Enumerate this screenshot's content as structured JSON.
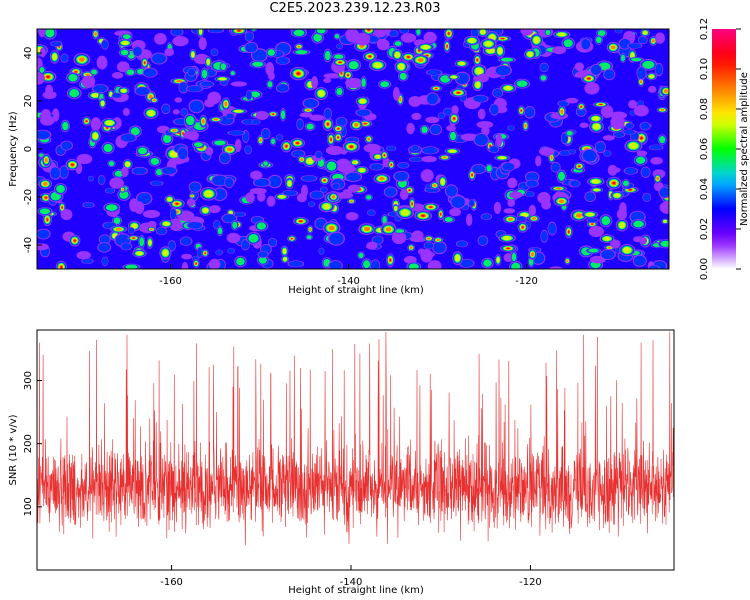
{
  "title": "C2E5.2023.239.12.23.R03",
  "chart_data": [
    {
      "type": "heatmap",
      "xlabel": "Height of straight line (km)",
      "ylabel": "Frequency (Hz)",
      "xlim": [
        -175,
        -104
      ],
      "ylim": [
        -50,
        50
      ],
      "xticks": [
        -160,
        -140,
        -120
      ],
      "xtick_labels": [
        "-160",
        "-140",
        "-120"
      ],
      "yticks": [
        -40,
        -20,
        0,
        20,
        40
      ],
      "ytick_labels": [
        "-40",
        "-20",
        "0",
        "20",
        "40"
      ],
      "colorbar": {
        "label": "Normalized spectral amplitude",
        "range": [
          0,
          0.12
        ],
        "ticks": [
          0,
          0.02,
          0.04,
          0.06,
          0.08,
          0.1,
          0.12
        ],
        "tick_labels": [
          "0.00",
          "0.02",
          "0.04",
          "0.06",
          "0.08",
          "0.10",
          "0.12"
        ],
        "colors": [
          "#ffffff",
          "#8000ff",
          "#0000ff",
          "#00ccff",
          "#00ff00",
          "#ffff00",
          "#ff8000",
          "#ff0000",
          "#ff0080"
        ]
      }
    },
    {
      "type": "line",
      "xlabel": "Height of straight line (km)",
      "ylabel": "SNR (10 * v/v)",
      "xlim": [
        -175,
        -104
      ],
      "ylim": [
        0,
        380
      ],
      "xticks": [
        -160,
        -140,
        -120
      ],
      "xtick_labels": [
        "-160",
        "-140",
        "-120"
      ],
      "yticks": [
        100,
        200,
        300
      ],
      "ytick_labels": [
        "100",
        "200",
        "300"
      ],
      "series": [
        {
          "name": "SNR",
          "color": "#e83030",
          "mean": 130,
          "min": 10,
          "max": 380
        }
      ]
    }
  ]
}
